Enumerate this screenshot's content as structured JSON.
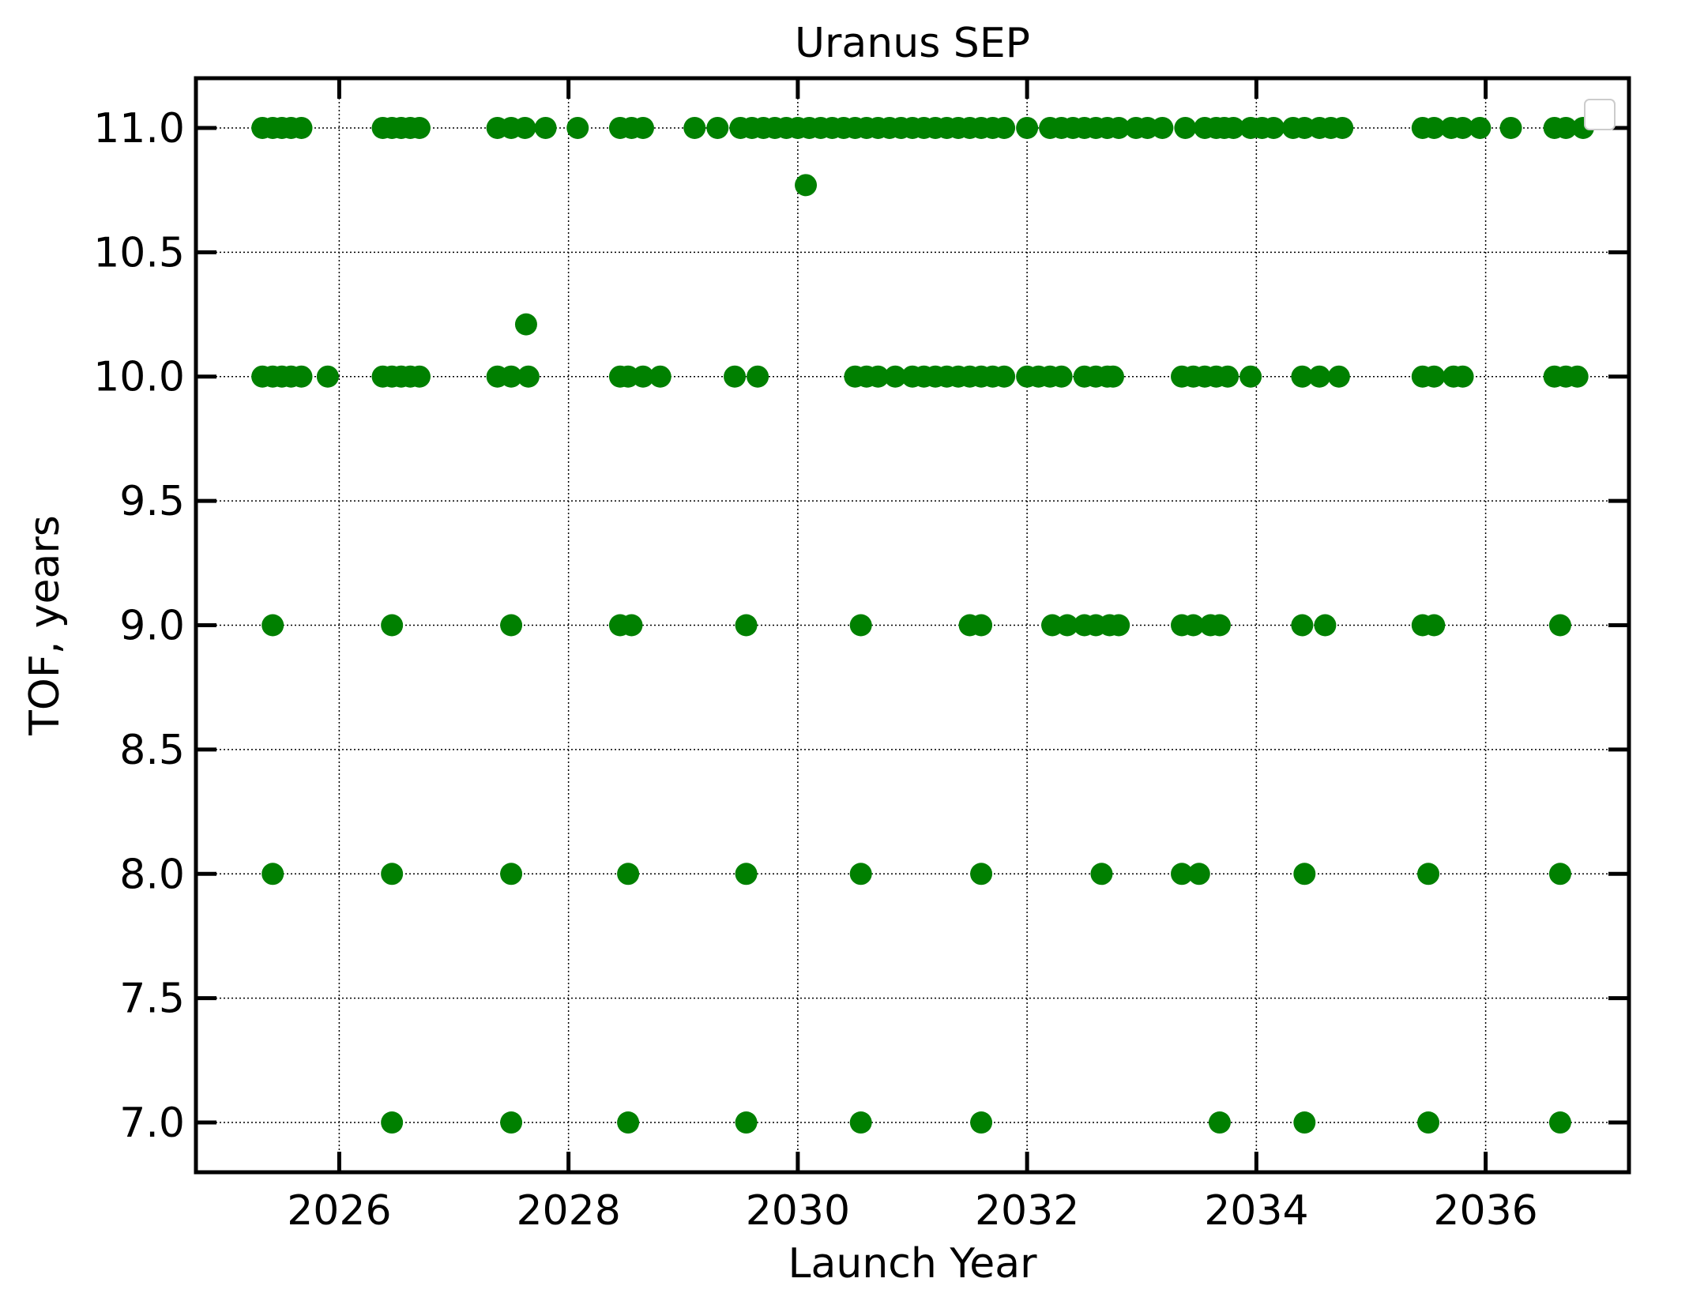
{
  "chart_data": {
    "type": "scatter",
    "title": "Uranus SEP",
    "xlabel": "Launch Year",
    "ylabel": "TOF, years",
    "xlim": [
      2024.75,
      2037.25
    ],
    "ylim": [
      6.8,
      11.2
    ],
    "xticks": [
      2026,
      2028,
      2030,
      2032,
      2034,
      2036
    ],
    "yticks": [
      7.0,
      7.5,
      8.0,
      8.5,
      9.0,
      9.5,
      10.0,
      10.5,
      11.0
    ],
    "xtick_labels": [
      "2026",
      "2028",
      "2030",
      "2032",
      "2034",
      "2036"
    ],
    "ytick_labels": [
      "7.0",
      "7.5",
      "8.0",
      "8.5",
      "9.0",
      "9.5",
      "10.0",
      "10.5",
      "11.0"
    ],
    "grid": true,
    "legend": "upper right (empty)",
    "marker_color": "#008000",
    "series": [
      {
        "points": [
          [
            2025.33,
            11.0
          ],
          [
            2025.42,
            11.0
          ],
          [
            2025.5,
            11.0
          ],
          [
            2025.58,
            11.0
          ],
          [
            2025.67,
            11.0
          ],
          [
            2026.38,
            11.0
          ],
          [
            2026.46,
            11.0
          ],
          [
            2026.54,
            11.0
          ],
          [
            2026.62,
            11.0
          ],
          [
            2026.7,
            11.0
          ],
          [
            2027.38,
            11.0
          ],
          [
            2027.5,
            11.0
          ],
          [
            2027.62,
            11.0
          ],
          [
            2027.8,
            11.0
          ],
          [
            2028.08,
            11.0
          ],
          [
            2028.45,
            11.0
          ],
          [
            2028.55,
            11.0
          ],
          [
            2028.65,
            11.0
          ],
          [
            2029.1,
            11.0
          ],
          [
            2029.3,
            11.0
          ],
          [
            2029.5,
            11.0
          ],
          [
            2029.6,
            11.0
          ],
          [
            2029.7,
            11.0
          ],
          [
            2029.8,
            11.0
          ],
          [
            2029.9,
            11.0
          ],
          [
            2030.0,
            11.0
          ],
          [
            2030.1,
            11.0
          ],
          [
            2030.2,
            11.0
          ],
          [
            2030.3,
            11.0
          ],
          [
            2030.4,
            11.0
          ],
          [
            2030.5,
            11.0
          ],
          [
            2030.6,
            11.0
          ],
          [
            2030.7,
            11.0
          ],
          [
            2030.8,
            11.0
          ],
          [
            2030.9,
            11.0
          ],
          [
            2031.0,
            11.0
          ],
          [
            2031.1,
            11.0
          ],
          [
            2031.2,
            11.0
          ],
          [
            2031.3,
            11.0
          ],
          [
            2031.4,
            11.0
          ],
          [
            2031.5,
            11.0
          ],
          [
            2031.6,
            11.0
          ],
          [
            2031.7,
            11.0
          ],
          [
            2031.8,
            11.0
          ],
          [
            2032.0,
            11.0
          ],
          [
            2032.2,
            11.0
          ],
          [
            2032.3,
            11.0
          ],
          [
            2032.4,
            11.0
          ],
          [
            2032.5,
            11.0
          ],
          [
            2032.6,
            11.0
          ],
          [
            2032.7,
            11.0
          ],
          [
            2032.8,
            11.0
          ],
          [
            2032.95,
            11.0
          ],
          [
            2033.05,
            11.0
          ],
          [
            2033.18,
            11.0
          ],
          [
            2033.38,
            11.0
          ],
          [
            2033.55,
            11.0
          ],
          [
            2033.65,
            11.0
          ],
          [
            2033.72,
            11.0
          ],
          [
            2033.8,
            11.0
          ],
          [
            2033.95,
            11.0
          ],
          [
            2034.05,
            11.0
          ],
          [
            2034.15,
            11.0
          ],
          [
            2034.32,
            11.0
          ],
          [
            2034.42,
            11.0
          ],
          [
            2034.55,
            11.0
          ],
          [
            2034.65,
            11.0
          ],
          [
            2034.75,
            11.0
          ],
          [
            2035.45,
            11.0
          ],
          [
            2035.55,
            11.0
          ],
          [
            2035.7,
            11.0
          ],
          [
            2035.8,
            11.0
          ],
          [
            2035.95,
            11.0
          ],
          [
            2036.22,
            11.0
          ],
          [
            2036.6,
            11.0
          ],
          [
            2036.7,
            11.0
          ],
          [
            2036.85,
            11.0
          ],
          [
            2030.07,
            10.77
          ],
          [
            2027.63,
            10.21
          ],
          [
            2025.33,
            10.0
          ],
          [
            2025.42,
            10.0
          ],
          [
            2025.5,
            10.0
          ],
          [
            2025.58,
            10.0
          ],
          [
            2025.67,
            10.0
          ],
          [
            2025.9,
            10.0
          ],
          [
            2026.38,
            10.0
          ],
          [
            2026.46,
            10.0
          ],
          [
            2026.54,
            10.0
          ],
          [
            2026.62,
            10.0
          ],
          [
            2026.7,
            10.0
          ],
          [
            2027.38,
            10.0
          ],
          [
            2027.5,
            10.0
          ],
          [
            2027.65,
            10.0
          ],
          [
            2028.45,
            10.0
          ],
          [
            2028.52,
            10.0
          ],
          [
            2028.65,
            10.0
          ],
          [
            2028.8,
            10.0
          ],
          [
            2029.45,
            10.0
          ],
          [
            2029.65,
            10.0
          ],
          [
            2030.5,
            10.0
          ],
          [
            2030.6,
            10.0
          ],
          [
            2030.7,
            10.0
          ],
          [
            2030.85,
            10.0
          ],
          [
            2031.0,
            10.0
          ],
          [
            2031.1,
            10.0
          ],
          [
            2031.2,
            10.0
          ],
          [
            2031.3,
            10.0
          ],
          [
            2031.4,
            10.0
          ],
          [
            2031.5,
            10.0
          ],
          [
            2031.6,
            10.0
          ],
          [
            2031.7,
            10.0
          ],
          [
            2031.8,
            10.0
          ],
          [
            2032.0,
            10.0
          ],
          [
            2032.1,
            10.0
          ],
          [
            2032.2,
            10.0
          ],
          [
            2032.3,
            10.0
          ],
          [
            2032.5,
            10.0
          ],
          [
            2032.6,
            10.0
          ],
          [
            2032.7,
            10.0
          ],
          [
            2032.75,
            10.0
          ],
          [
            2033.35,
            10.0
          ],
          [
            2033.45,
            10.0
          ],
          [
            2033.55,
            10.0
          ],
          [
            2033.65,
            10.0
          ],
          [
            2033.75,
            10.0
          ],
          [
            2033.95,
            10.0
          ],
          [
            2034.4,
            10.0
          ],
          [
            2034.55,
            10.0
          ],
          [
            2034.72,
            10.0
          ],
          [
            2035.45,
            10.0
          ],
          [
            2035.55,
            10.0
          ],
          [
            2035.72,
            10.0
          ],
          [
            2035.8,
            10.0
          ],
          [
            2036.6,
            10.0
          ],
          [
            2036.7,
            10.0
          ],
          [
            2036.8,
            10.0
          ],
          [
            2025.42,
            9.0
          ],
          [
            2026.46,
            9.0
          ],
          [
            2027.5,
            9.0
          ],
          [
            2028.45,
            9.0
          ],
          [
            2028.55,
            9.0
          ],
          [
            2029.55,
            9.0
          ],
          [
            2030.55,
            9.0
          ],
          [
            2031.5,
            9.0
          ],
          [
            2031.6,
            9.0
          ],
          [
            2032.22,
            9.0
          ],
          [
            2032.35,
            9.0
          ],
          [
            2032.5,
            9.0
          ],
          [
            2032.6,
            9.0
          ],
          [
            2032.72,
            9.0
          ],
          [
            2032.8,
            9.0
          ],
          [
            2033.35,
            9.0
          ],
          [
            2033.45,
            9.0
          ],
          [
            2033.6,
            9.0
          ],
          [
            2033.68,
            9.0
          ],
          [
            2034.4,
            9.0
          ],
          [
            2034.6,
            9.0
          ],
          [
            2035.45,
            9.0
          ],
          [
            2035.55,
            9.0
          ],
          [
            2036.65,
            9.0
          ],
          [
            2025.42,
            8.0
          ],
          [
            2026.46,
            8.0
          ],
          [
            2027.5,
            8.0
          ],
          [
            2028.52,
            8.0
          ],
          [
            2029.55,
            8.0
          ],
          [
            2030.55,
            8.0
          ],
          [
            2031.6,
            8.0
          ],
          [
            2032.65,
            8.0
          ],
          [
            2033.35,
            8.0
          ],
          [
            2033.5,
            8.0
          ],
          [
            2034.42,
            8.0
          ],
          [
            2035.5,
            8.0
          ],
          [
            2036.65,
            8.0
          ],
          [
            2026.46,
            7.0
          ],
          [
            2027.5,
            7.0
          ],
          [
            2028.52,
            7.0
          ],
          [
            2029.55,
            7.0
          ],
          [
            2030.55,
            7.0
          ],
          [
            2031.6,
            7.0
          ],
          [
            2033.68,
            7.0
          ],
          [
            2034.42,
            7.0
          ],
          [
            2035.5,
            7.0
          ],
          [
            2036.65,
            7.0
          ]
        ]
      }
    ]
  }
}
